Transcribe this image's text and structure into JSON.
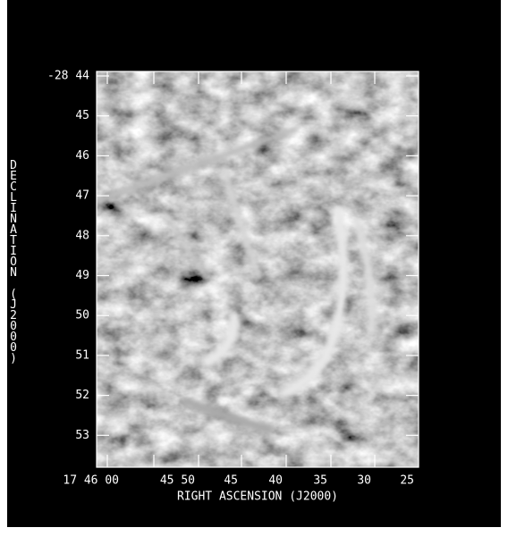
{
  "axes": {
    "y_ticks": [
      "-28 44",
      "45",
      "46",
      "47",
      "48",
      "49",
      "50",
      "51",
      "52",
      "53"
    ],
    "x_ticks": [
      "17 46 00",
      "45 50",
      "45",
      "40",
      "35",
      "30",
      "25"
    ],
    "y_label": "DECLINATION (J2000)",
    "x_label": "RIGHT ASCENSION (J2000)"
  }
}
